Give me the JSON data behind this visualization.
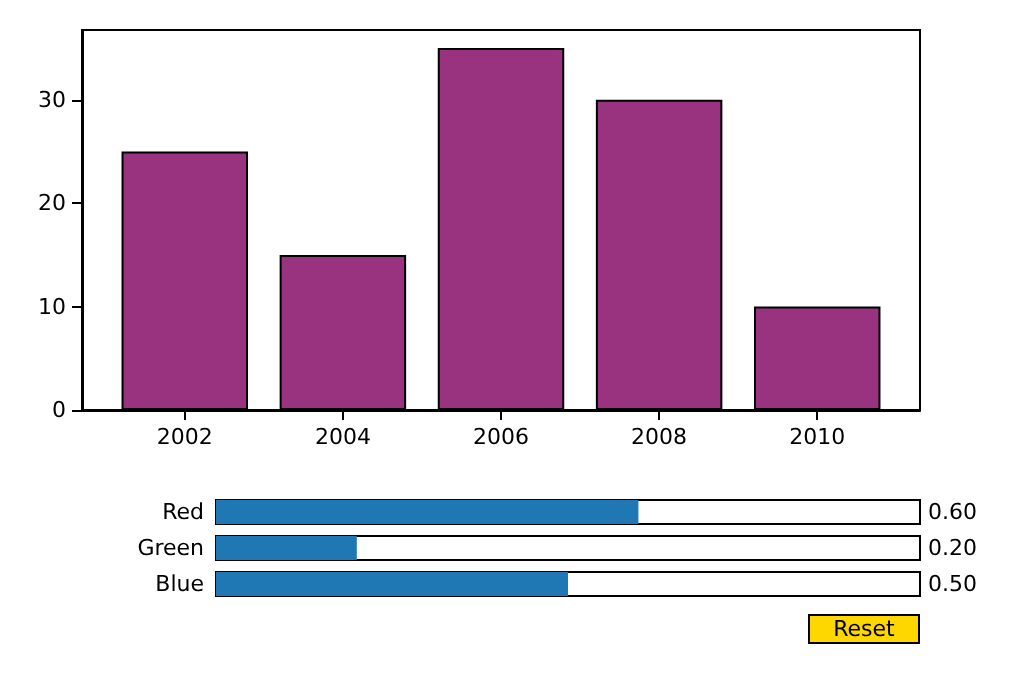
{
  "chart_data": [
    {
      "type": "bar",
      "x": [
        2002,
        2004,
        2006,
        2008,
        2010
      ],
      "values": [
        25,
        15,
        35,
        30,
        10
      ],
      "color": "#993380",
      "xlim": [
        2000.7,
        2011.3
      ],
      "xticks": [
        2002,
        2004,
        2006,
        2008,
        2010
      ],
      "ylim": [
        0,
        36.75
      ],
      "yticks": [
        0,
        10,
        20,
        30
      ],
      "grid": false
    },
    {
      "type": "bar",
      "orientation": "horizontal",
      "categories": [
        "Red",
        "Green",
        "Blue"
      ],
      "values": [
        0.6,
        0.2,
        0.5
      ],
      "value_labels": [
        "0.60",
        "0.20",
        "0.50"
      ],
      "color": "#1f77b4",
      "xlim": [
        0,
        1
      ],
      "tick_labels": "y",
      "annotations": [
        "Reset"
      ]
    }
  ]
}
